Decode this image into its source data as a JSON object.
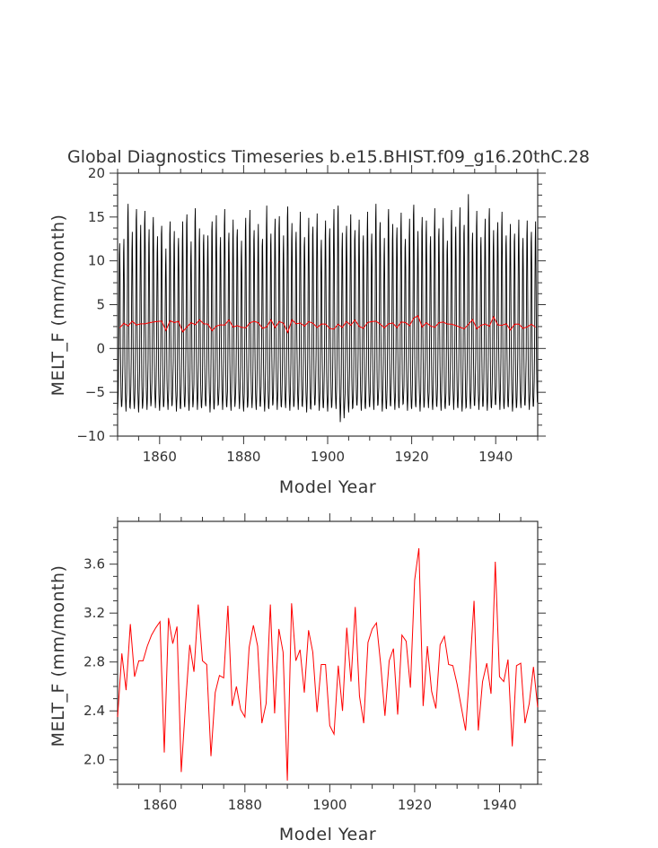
{
  "title": "Global Diagnostics Timeseries b.e15.BHIST.f09_g16.20thC.28",
  "colors": {
    "monthly": "#000000",
    "annual": "#ff0000",
    "axis": "#333333"
  },
  "chart_data": [
    {
      "type": "line",
      "title": "Global Diagnostics Timeseries b.e15.BHIST.f09_g16.20thC.28",
      "xlabel": "Model Year",
      "ylabel": "MELT_F (mm/month)",
      "xlim": [
        1850,
        1950
      ],
      "ylim": [
        -10,
        20
      ],
      "x_ticks": [
        1860,
        1880,
        1900,
        1920,
        1940
      ],
      "x_tick_labels": [
        "1860",
        "1880",
        "1900",
        "1920",
        "1940"
      ],
      "y_ticks": [
        -10,
        -5,
        0,
        5,
        10,
        15,
        20
      ],
      "y_tick_labels": [
        "−10",
        "−5",
        "0",
        "5",
        "10",
        "15",
        "20"
      ],
      "zero_line": true,
      "grid": false,
      "monthly_series": {
        "color": "#000000",
        "x_start": 1850,
        "x_step": 0.0833333,
        "peak_month_index": 6,
        "trough_month_index": 0,
        "annual_peaks": [
          12.0,
          12.5,
          16.5,
          13.3,
          15.9,
          14.1,
          15.7,
          13.6,
          15.0,
          12.8,
          14.0,
          11.4,
          14.5,
          13.4,
          12.6,
          14.5,
          15.3,
          12.2,
          16.0,
          13.7,
          13.0,
          12.9,
          14.5,
          15.2,
          12.7,
          15.9,
          13.2,
          14.7,
          13.6,
          12.3,
          14.9,
          15.8,
          13.5,
          14.2,
          12.5,
          16.3,
          13.1,
          14.8,
          15.1,
          12.9,
          16.2,
          14.3,
          13.3,
          15.6,
          12.7,
          14.9,
          13.9,
          15.4,
          12.4,
          14.6,
          13.7,
          15.9,
          16.3,
          13.2,
          14.0,
          15.3,
          13.5,
          14.7,
          12.9,
          15.6,
          13.1,
          16.5,
          14.4,
          12.6,
          15.9,
          14.2,
          13.8,
          15.5,
          12.5,
          14.8,
          16.4,
          13.4,
          15.0,
          14.6,
          12.8,
          16.0,
          13.7,
          14.9,
          12.3,
          15.8,
          13.9,
          16.1,
          14.1,
          17.6,
          13.2,
          15.7,
          12.7,
          14.8,
          16.0,
          13.5,
          14.4,
          15.6,
          12.9,
          14.2,
          13.1,
          14.7,
          12.6,
          14.6,
          13.3,
          14.5
        ],
        "annual_troughs": [
          -7.0,
          -6.6,
          -7.2,
          -6.8,
          -6.9,
          -7.3,
          -6.5,
          -7.0,
          -6.2,
          -6.8,
          -7.1,
          -6.6,
          -7.0,
          -6.4,
          -7.2,
          -6.9,
          -6.7,
          -7.1,
          -6.3,
          -7.0,
          -6.8,
          -6.6,
          -7.3,
          -6.9,
          -6.4,
          -7.0,
          -6.7,
          -7.1,
          -6.2,
          -6.9,
          -7.2,
          -6.5,
          -6.8,
          -7.0,
          -6.6,
          -7.2,
          -6.9,
          -6.3,
          -7.0,
          -6.7,
          -6.8,
          -7.1,
          -6.5,
          -7.0,
          -6.6,
          -7.3,
          -6.9,
          -6.4,
          -7.1,
          -6.8,
          -7.2,
          -6.6,
          -6.9,
          -8.4,
          -7.0,
          -7.3,
          -6.8,
          -6.5,
          -7.1,
          -6.9,
          -6.7,
          -7.0,
          -6.4,
          -7.2,
          -6.9,
          -6.6,
          -7.0,
          -6.8,
          -6.3,
          -7.1,
          -6.9,
          -6.7,
          -7.2,
          -6.5,
          -6.8,
          -7.0,
          -6.6,
          -7.1,
          -6.9,
          -6.4,
          -7.0,
          -6.8,
          -7.2,
          -6.7,
          -6.9,
          -6.5,
          -7.0,
          -6.6,
          -7.1,
          -6.8,
          -6.4,
          -7.0,
          -6.9,
          -6.7,
          -7.2,
          -6.6,
          -6.8,
          -6.5,
          -7.0,
          -6.6
        ]
      },
      "annual_series_ref": "annual_mean"
    },
    {
      "type": "line",
      "xlabel": "Model Year",
      "ylabel": "MELT_F (mm/month)",
      "xlim": [
        1850,
        1949
      ],
      "ylim": [
        1.8,
        3.95
      ],
      "x_ticks": [
        1860,
        1880,
        1900,
        1920,
        1940
      ],
      "x_tick_labels": [
        "1860",
        "1880",
        "1900",
        "1920",
        "1940"
      ],
      "y_ticks": [
        2.0,
        2.4,
        2.8,
        3.2,
        3.6
      ],
      "y_tick_labels": [
        "2.0",
        "2.4",
        "2.8",
        "3.2",
        "3.6"
      ],
      "grid": false,
      "series": [
        {
          "color": "#ff0000",
          "x_start": 1850,
          "x_step": 1,
          "values": [
            2.35,
            2.87,
            2.57,
            3.11,
            2.68,
            2.81,
            2.81,
            2.93,
            3.02,
            3.08,
            3.13,
            2.06,
            3.16,
            2.95,
            3.09,
            1.9,
            2.45,
            2.94,
            2.72,
            3.27,
            2.81,
            2.78,
            2.03,
            2.55,
            2.69,
            2.67,
            3.26,
            2.44,
            2.6,
            2.41,
            2.35,
            2.92,
            3.1,
            2.93,
            2.3,
            2.46,
            3.27,
            2.38,
            3.07,
            2.88,
            1.83,
            3.28,
            2.81,
            2.9,
            2.55,
            3.06,
            2.88,
            2.39,
            2.78,
            2.78,
            2.28,
            2.21,
            2.77,
            2.4,
            3.08,
            2.64,
            3.25,
            2.52,
            2.3,
            2.96,
            3.07,
            3.12,
            2.78,
            2.36,
            2.81,
            2.91,
            2.37,
            3.02,
            2.97,
            2.59,
            3.47,
            3.73,
            2.44,
            2.93,
            2.56,
            2.42,
            2.94,
            3.01,
            2.78,
            2.77,
            2.62,
            2.43,
            2.24,
            2.74,
            3.3,
            2.24,
            2.64,
            2.79,
            2.54,
            3.62,
            2.68,
            2.64,
            2.82,
            2.11,
            2.77,
            2.79,
            2.3,
            2.46,
            2.76,
            2.43
          ]
        }
      ]
    }
  ]
}
